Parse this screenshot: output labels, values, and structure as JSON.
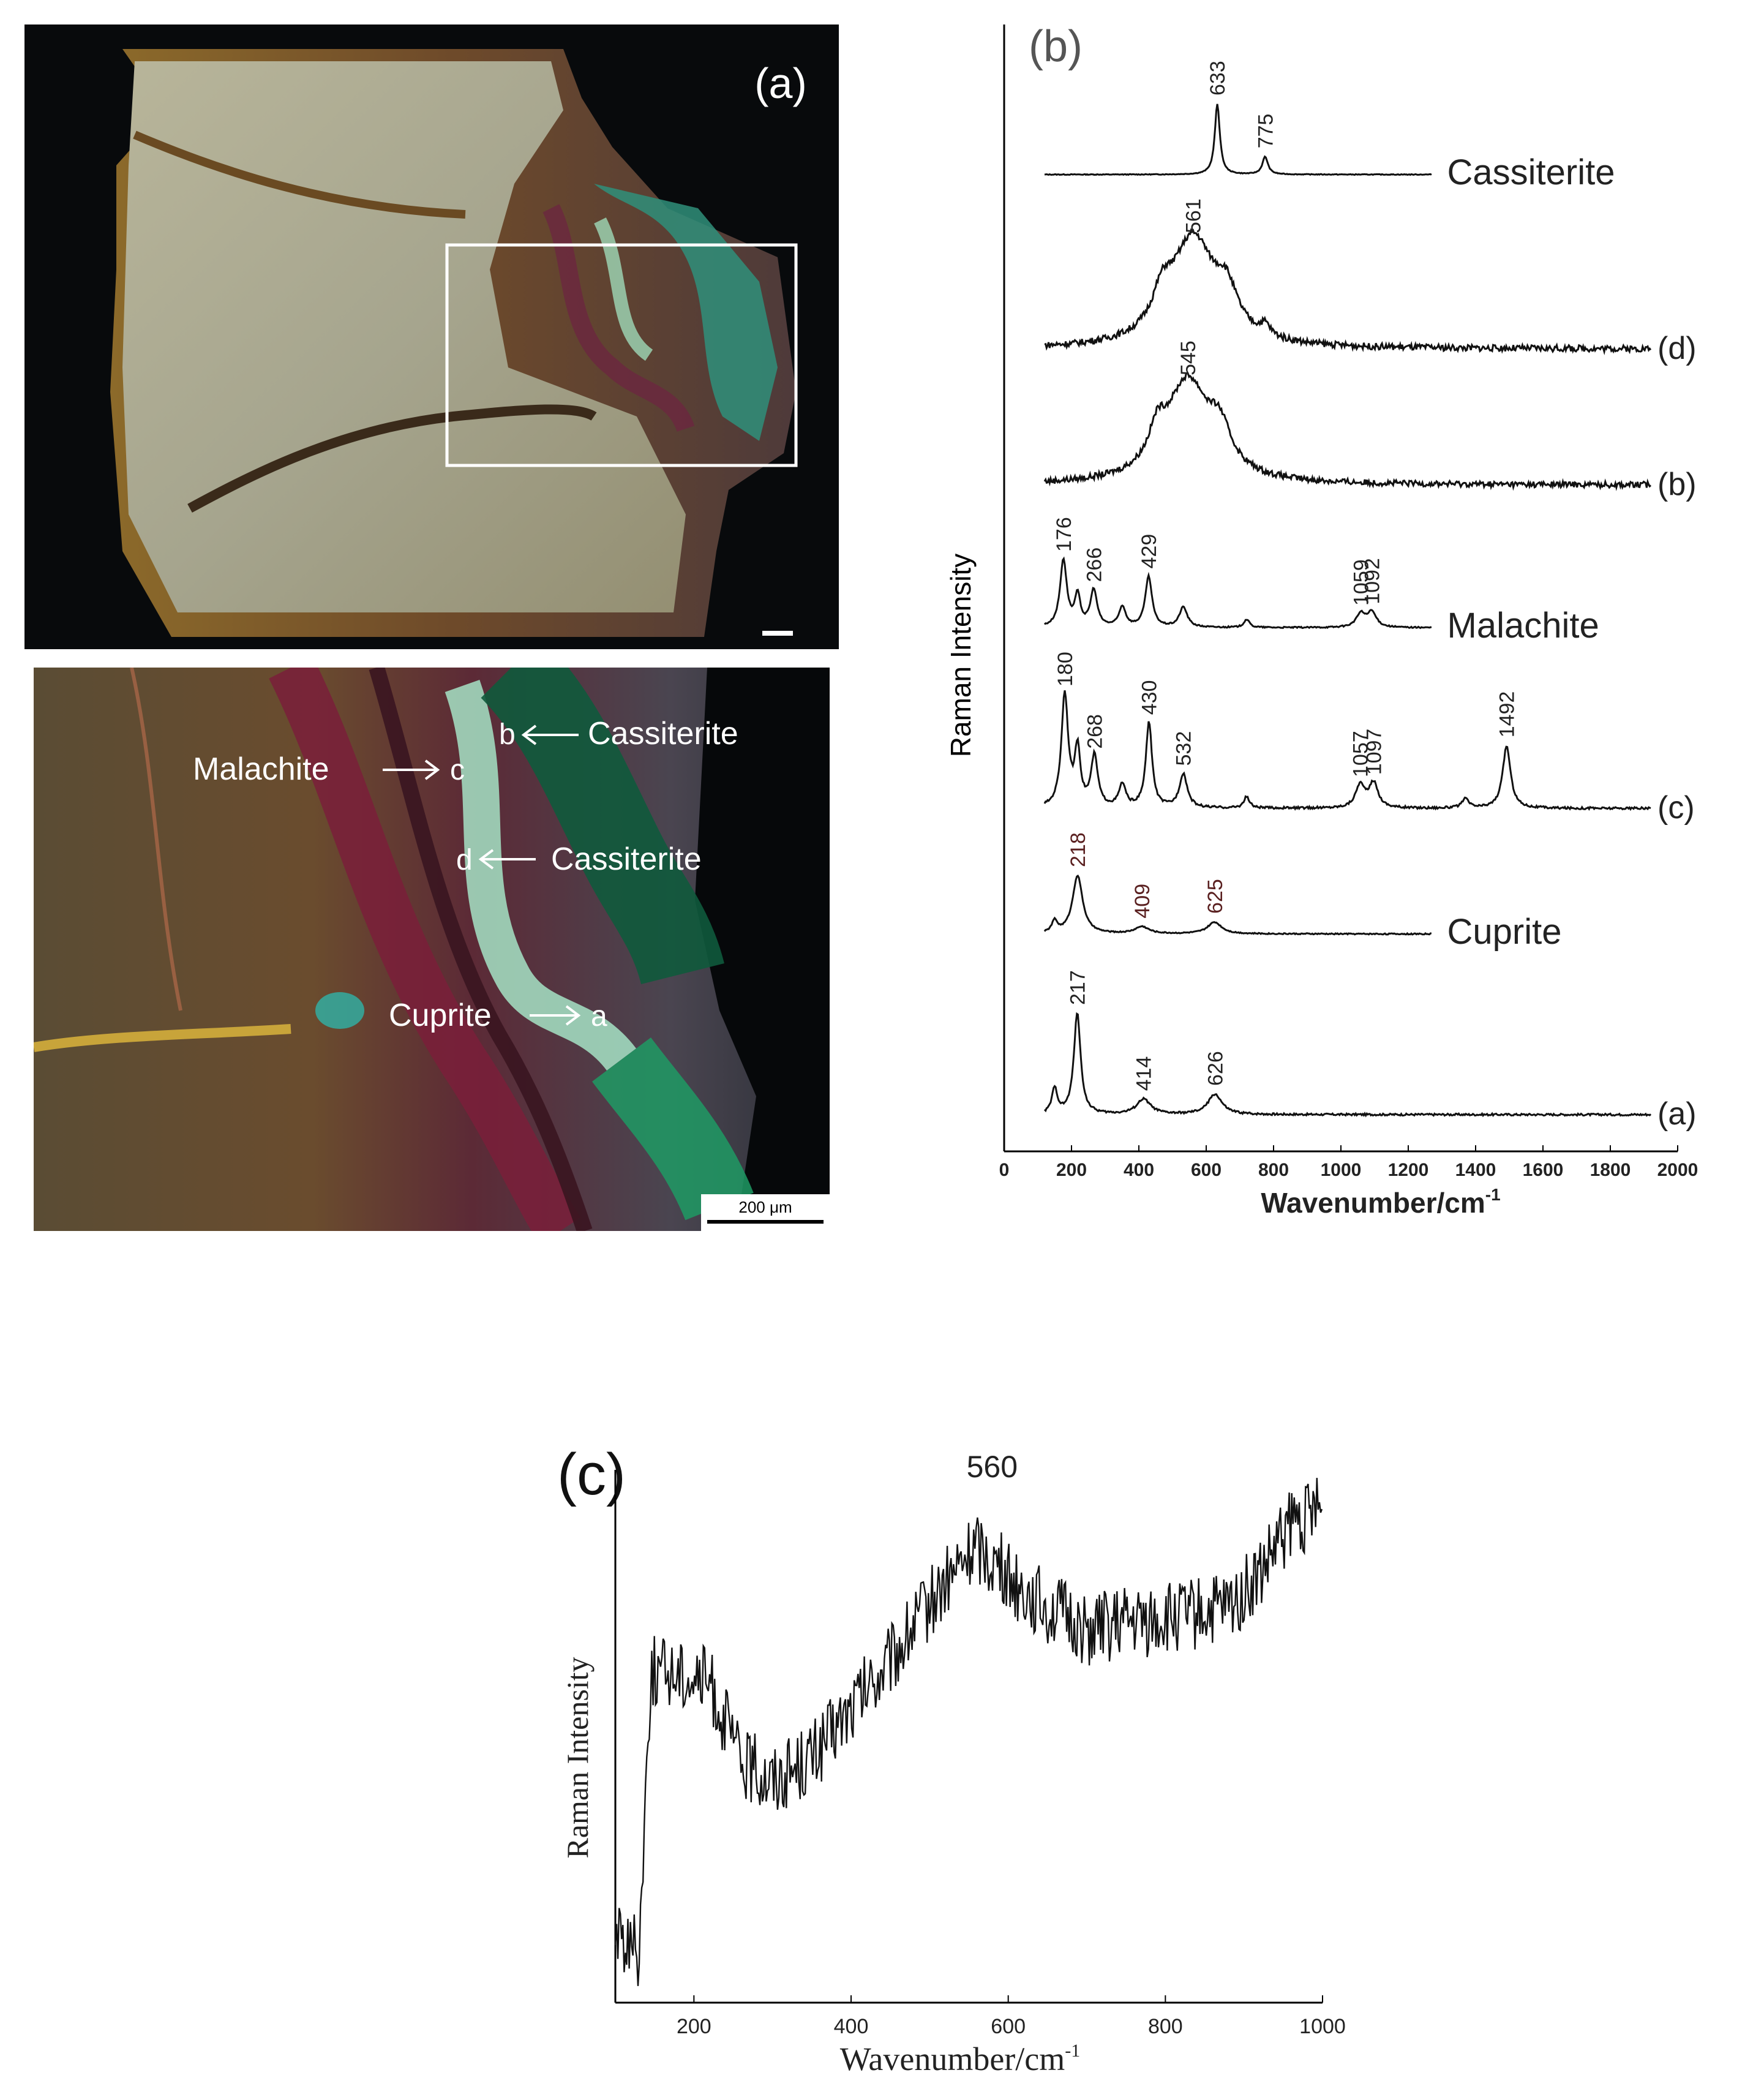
{
  "panel_a": {
    "label": "(a)",
    "annotations": [
      {
        "name": "b",
        "text": "Cassiterite"
      },
      {
        "name": "c",
        "text": "Malachite"
      },
      {
        "name": "d",
        "text": "Cassiterite"
      },
      {
        "name": "a",
        "text": "Cuprite"
      }
    ],
    "scale_bar": "200 μm"
  },
  "chart_data": [
    {
      "type": "line",
      "panel_label": "(b)",
      "xlabel": "Wavenumber/cm",
      "xlabel_superscript": "-1",
      "ylabel": "Raman Intensity",
      "xlim": [
        0,
        2000
      ],
      "xticks": [
        0,
        200,
        400,
        600,
        800,
        1000,
        1200,
        1400,
        1600,
        1800,
        2000
      ],
      "yticks": [],
      "series": [
        {
          "name": "Cassiterite",
          "x_range": [
            120,
            1270
          ],
          "peaks": [
            {
              "x": 633,
              "label": "633",
              "h": 1.0,
              "w": 9
            },
            {
              "x": 775,
              "label": "775",
              "h": 0.25,
              "w": 10
            }
          ],
          "noise": 0.005
        },
        {
          "name": "(d)",
          "x_range": [
            120,
            1920
          ],
          "peaks": [
            {
              "x": 561,
              "label": "561",
              "h": 1.0,
              "w": 80
            },
            {
              "x": 470,
              "label": "",
              "h": 0.3,
              "w": 35
            },
            {
              "x": 660,
              "label": "",
              "h": 0.35,
              "w": 40
            },
            {
              "x": 775,
              "label": "",
              "h": 0.1,
              "w": 18
            }
          ],
          "noise": 0.03
        },
        {
          "name": "(b)",
          "x_range": [
            120,
            1920
          ],
          "peaks": [
            {
              "x": 545,
              "label": "545",
              "h": 1.0,
              "w": 80
            },
            {
              "x": 455,
              "label": "",
              "h": 0.3,
              "w": 30
            },
            {
              "x": 640,
              "label": "",
              "h": 0.35,
              "w": 40
            }
          ],
          "noise": 0.03
        },
        {
          "name": "Malachite",
          "x_range": [
            120,
            1270
          ],
          "peaks": [
            {
              "x": 176,
              "label": "176",
              "h": 1.0,
              "w": 12
            },
            {
              "x": 218,
              "label": "",
              "h": 0.45,
              "w": 10
            },
            {
              "x": 266,
              "label": "266",
              "h": 0.55,
              "w": 12
            },
            {
              "x": 351,
              "label": "",
              "h": 0.3,
              "w": 12
            },
            {
              "x": 429,
              "label": "429",
              "h": 0.75,
              "w": 12
            },
            {
              "x": 532,
              "label": "",
              "h": 0.3,
              "w": 14
            },
            {
              "x": 720,
              "label": "",
              "h": 0.12,
              "w": 10
            },
            {
              "x": 1059,
              "label": "1059",
              "h": 0.2,
              "w": 16
            },
            {
              "x": 1092,
              "label": "1092",
              "h": 0.22,
              "w": 16
            }
          ],
          "noise": 0.01
        },
        {
          "name": "(c)",
          "x_range": [
            120,
            1920
          ],
          "peaks": [
            {
              "x": 180,
              "label": "180",
              "h": 1.0,
              "w": 12
            },
            {
              "x": 218,
              "label": "",
              "h": 0.5,
              "w": 10
            },
            {
              "x": 268,
              "label": "268",
              "h": 0.45,
              "w": 12
            },
            {
              "x": 351,
              "label": "",
              "h": 0.2,
              "w": 12
            },
            {
              "x": 430,
              "label": "430",
              "h": 0.75,
              "w": 11
            },
            {
              "x": 532,
              "label": "532",
              "h": 0.3,
              "w": 14
            },
            {
              "x": 720,
              "label": "",
              "h": 0.1,
              "w": 10
            },
            {
              "x": 1057,
              "label": "1057",
              "h": 0.2,
              "w": 16
            },
            {
              "x": 1097,
              "label": "1097",
              "h": 0.22,
              "w": 16
            },
            {
              "x": 1370,
              "label": "",
              "h": 0.08,
              "w": 12
            },
            {
              "x": 1492,
              "label": "1492",
              "h": 0.55,
              "w": 14
            }
          ],
          "noise": 0.01
        },
        {
          "name": "Cuprite",
          "x_range": [
            120,
            1270
          ],
          "peaks": [
            {
              "x": 218,
              "label": "218",
              "h": 1.0,
              "w": 18
            },
            {
              "x": 150,
              "label": "",
              "h": 0.2,
              "w": 10
            },
            {
              "x": 409,
              "label": "409",
              "h": 0.12,
              "w": 25
            },
            {
              "x": 625,
              "label": "625",
              "h": 0.2,
              "w": 25
            }
          ],
          "noise": 0.01
        },
        {
          "name": "(a)",
          "x_range": [
            120,
            1920
          ],
          "peaks": [
            {
              "x": 217,
              "label": "217",
              "h": 1.0,
              "w": 12
            },
            {
              "x": 150,
              "label": "",
              "h": 0.25,
              "w": 10
            },
            {
              "x": 414,
              "label": "414",
              "h": 0.15,
              "w": 25
            },
            {
              "x": 626,
              "label": "626",
              "h": 0.2,
              "w": 25
            }
          ],
          "noise": 0.01
        }
      ]
    },
    {
      "type": "line",
      "panel_label": "(c)",
      "xlabel": "Wavenumber/cm",
      "xlabel_superscript": "-1",
      "ylabel": "Raman Intensity",
      "xlim": [
        100,
        1000
      ],
      "xticks": [
        200,
        400,
        600,
        800,
        1000
      ],
      "peak_label": {
        "x": 560,
        "label": "560"
      },
      "envelope": [
        [
          100,
          0.13
        ],
        [
          130,
          0.1
        ],
        [
          145,
          0.62
        ],
        [
          180,
          0.62
        ],
        [
          220,
          0.6
        ],
        [
          260,
          0.45
        ],
        [
          300,
          0.42
        ],
        [
          350,
          0.46
        ],
        [
          400,
          0.55
        ],
        [
          450,
          0.64
        ],
        [
          500,
          0.75
        ],
        [
          560,
          0.86
        ],
        [
          600,
          0.8
        ],
        [
          650,
          0.74
        ],
        [
          700,
          0.7
        ],
        [
          800,
          0.72
        ],
        [
          880,
          0.74
        ],
        [
          920,
          0.8
        ],
        [
          960,
          0.9
        ],
        [
          1000,
          0.92
        ]
      ],
      "noise": 0.07
    }
  ]
}
